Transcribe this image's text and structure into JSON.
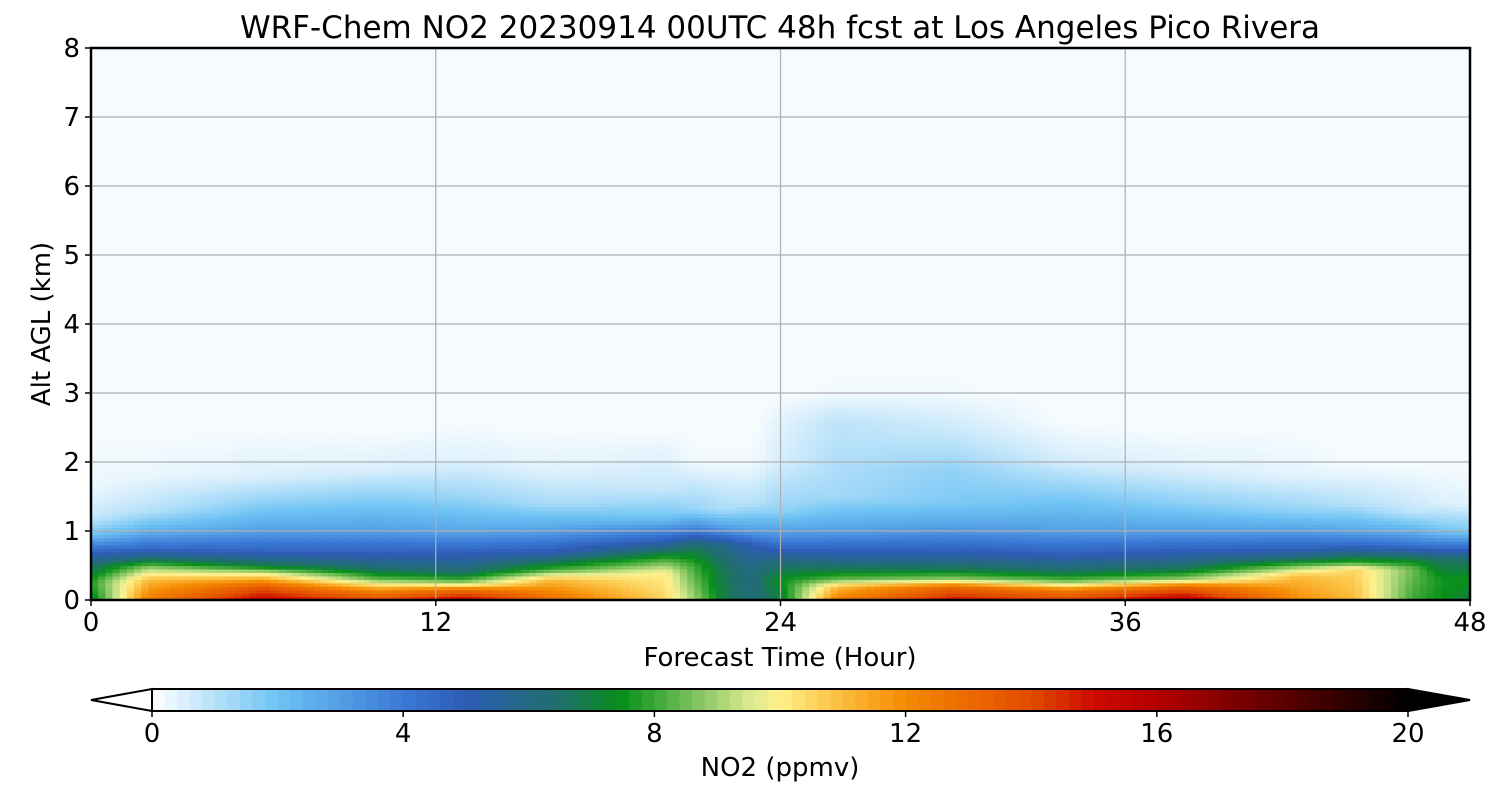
{
  "chart_data": {
    "type": "heatmap",
    "title": "WRF-Chem NO2  20230914 00UTC 48h fcst at Los Angeles Pico Rivera",
    "xlabel": "Forecast Time (Hour)",
    "ylabel": "Alt AGL (km)",
    "xlim": [
      0,
      48
    ],
    "ylim": [
      0,
      8
    ],
    "x_ticks": [
      0,
      12,
      24,
      36,
      48
    ],
    "y_ticks": [
      0,
      1,
      2,
      3,
      4,
      5,
      6,
      7,
      8
    ],
    "grid": true,
    "colorbar": {
      "label": "NO2  (ppmv)",
      "range": [
        0,
        20
      ],
      "ticks": [
        0,
        4,
        8,
        12,
        16,
        20
      ],
      "extend": "both",
      "orientation": "horizontal",
      "stops": [
        {
          "v": 0,
          "c": "#ffffff"
        },
        {
          "v": 2,
          "c": "#6ec3f4"
        },
        {
          "v": 4,
          "c": "#3a78d6"
        },
        {
          "v": 5,
          "c": "#2d5cb5"
        },
        {
          "v": 6.5,
          "c": "#1f6f6a"
        },
        {
          "v": 7.5,
          "c": "#08901a"
        },
        {
          "v": 9.5,
          "c": "#d8e98f"
        },
        {
          "v": 10,
          "c": "#fff08a"
        },
        {
          "v": 11,
          "c": "#fbbc3c"
        },
        {
          "v": 12,
          "c": "#f58a00"
        },
        {
          "v": 14,
          "c": "#e24b00"
        },
        {
          "v": 15,
          "c": "#cc0a00"
        },
        {
          "v": 16,
          "c": "#b30000"
        },
        {
          "v": 18,
          "c": "#5c0000"
        },
        {
          "v": 20,
          "c": "#000000"
        }
      ]
    },
    "profile_hours": [
      0,
      2,
      6,
      10,
      13,
      16,
      20,
      21,
      22,
      23,
      24,
      26,
      30,
      34,
      38,
      42,
      44,
      46,
      47,
      48
    ],
    "profiles_note": "",
    "profiles": [
      [
        [
          0,
          7.0
        ],
        [
          0.25,
          7.8
        ],
        [
          0.5,
          6.5
        ],
        [
          0.75,
          4.2
        ],
        [
          0.95,
          2.0
        ],
        [
          1.2,
          0.8
        ],
        [
          1.6,
          0.3
        ],
        [
          2.5,
          0.1
        ]
      ],
      [
        [
          0,
          12.5
        ],
        [
          0.3,
          11.0
        ],
        [
          0.5,
          8.5
        ],
        [
          0.6,
          6.5
        ],
        [
          0.75,
          4.5
        ],
        [
          1.0,
          2.5
        ],
        [
          1.3,
          1.0
        ],
        [
          1.8,
          0.3
        ],
        [
          2.5,
          0.1
        ]
      ],
      [
        [
          0,
          15.5
        ],
        [
          0.2,
          13.5
        ],
        [
          0.4,
          9.5
        ],
        [
          0.5,
          7.0
        ],
        [
          0.7,
          4.8
        ],
        [
          1.0,
          3.0
        ],
        [
          1.4,
          1.6
        ],
        [
          1.8,
          0.5
        ],
        [
          2.5,
          0.1
        ]
      ],
      [
        [
          0,
          14.0
        ],
        [
          0.15,
          12.0
        ],
        [
          0.3,
          8.5
        ],
        [
          0.45,
          6.5
        ],
        [
          0.7,
          4.8
        ],
        [
          1.0,
          3.0
        ],
        [
          1.5,
          1.6
        ],
        [
          1.9,
          0.5
        ],
        [
          2.5,
          0.1
        ]
      ],
      [
        [
          0,
          15.5
        ],
        [
          0.15,
          13.0
        ],
        [
          0.25,
          9.0
        ],
        [
          0.4,
          6.5
        ],
        [
          0.7,
          4.8
        ],
        [
          1.0,
          2.8
        ],
        [
          1.5,
          1.4
        ],
        [
          2.0,
          0.5
        ],
        [
          2.6,
          0.1
        ]
      ],
      [
        [
          0,
          13.0
        ],
        [
          0.3,
          11.0
        ],
        [
          0.45,
          8.0
        ],
        [
          0.55,
          6.8
        ],
        [
          0.7,
          5.0
        ],
        [
          1.0,
          3.0
        ],
        [
          1.4,
          1.2
        ],
        [
          1.9,
          0.4
        ],
        [
          2.5,
          0.1
        ]
      ],
      [
        [
          0,
          10.5
        ],
        [
          0.4,
          10.0
        ],
        [
          0.6,
          8.0
        ],
        [
          0.75,
          6.2
        ],
        [
          0.9,
          4.5
        ],
        [
          1.2,
          2.0
        ],
        [
          1.6,
          0.8
        ],
        [
          2.5,
          0.1
        ]
      ],
      [
        [
          0,
          9.0
        ],
        [
          0.5,
          8.0
        ],
        [
          0.8,
          6.5
        ],
        [
          1.0,
          4.0
        ],
        [
          1.3,
          1.5
        ],
        [
          2.0,
          0.2
        ]
      ],
      [
        [
          0,
          7.0
        ],
        [
          0.4,
          6.8
        ],
        [
          0.8,
          6.0
        ],
        [
          1.0,
          3.5
        ],
        [
          1.3,
          1.2
        ],
        [
          2.0,
          0.2
        ]
      ],
      [
        [
          0,
          6.2
        ],
        [
          0.5,
          6.0
        ],
        [
          0.8,
          5.0
        ],
        [
          1.0,
          3.0
        ],
        [
          1.4,
          1.0
        ],
        [
          2.0,
          0.2
        ]
      ],
      [
        [
          0,
          7.0
        ],
        [
          0.3,
          7.5
        ],
        [
          0.6,
          6.0
        ],
        [
          0.9,
          3.5
        ],
        [
          1.3,
          1.5
        ],
        [
          2.0,
          0.6
        ],
        [
          2.6,
          0.4
        ],
        [
          3.0,
          0.1
        ]
      ],
      [
        [
          0,
          12.5
        ],
        [
          0.2,
          11.0
        ],
        [
          0.3,
          8.5
        ],
        [
          0.45,
          6.8
        ],
        [
          0.7,
          5.0
        ],
        [
          1.0,
          3.0
        ],
        [
          1.5,
          1.3
        ],
        [
          2.3,
          1.0
        ],
        [
          2.6,
          0.9
        ],
        [
          3.0,
          0.2
        ]
      ],
      [
        [
          0,
          15.0
        ],
        [
          0.2,
          13.0
        ],
        [
          0.3,
          9.0
        ],
        [
          0.45,
          6.8
        ],
        [
          0.7,
          5.0
        ],
        [
          1.0,
          3.2
        ],
        [
          1.4,
          1.8
        ],
        [
          1.9,
          1.5
        ],
        [
          2.4,
          0.8
        ],
        [
          3.0,
          0.2
        ]
      ],
      [
        [
          0,
          14.0
        ],
        [
          0.15,
          12.5
        ],
        [
          0.25,
          9.0
        ],
        [
          0.4,
          6.8
        ],
        [
          0.65,
          5.0
        ],
        [
          1.0,
          3.0
        ],
        [
          1.5,
          1.8
        ],
        [
          2.0,
          0.6
        ],
        [
          2.6,
          0.1
        ]
      ],
      [
        [
          0,
          16.0
        ],
        [
          0.2,
          13.0
        ],
        [
          0.3,
          9.0
        ],
        [
          0.45,
          6.8
        ],
        [
          0.7,
          5.0
        ],
        [
          1.0,
          3.0
        ],
        [
          1.4,
          1.6
        ],
        [
          1.9,
          0.5
        ],
        [
          2.5,
          0.1
        ]
      ],
      [
        [
          0,
          12.0
        ],
        [
          0.35,
          11.0
        ],
        [
          0.5,
          8.5
        ],
        [
          0.6,
          6.5
        ],
        [
          0.75,
          4.8
        ],
        [
          1.0,
          3.0
        ],
        [
          1.3,
          1.5
        ],
        [
          1.8,
          0.4
        ],
        [
          2.5,
          0.1
        ]
      ],
      [
        [
          0,
          11.0
        ],
        [
          0.45,
          10.5
        ],
        [
          0.55,
          8.0
        ],
        [
          0.65,
          6.5
        ],
        [
          0.8,
          4.5
        ],
        [
          1.0,
          2.8
        ],
        [
          1.4,
          1.0
        ],
        [
          2.0,
          0.1
        ]
      ],
      [
        [
          0,
          8.0
        ],
        [
          0.45,
          8.5
        ],
        [
          0.6,
          7.0
        ],
        [
          0.8,
          4.2
        ],
        [
          1.0,
          2.5
        ],
        [
          1.3,
          0.8
        ],
        [
          2.0,
          0.1
        ]
      ],
      [
        [
          0,
          7.5
        ],
        [
          0.3,
          7.6
        ],
        [
          0.6,
          6.5
        ],
        [
          0.8,
          4.0
        ],
        [
          1.0,
          2.0
        ],
        [
          1.4,
          0.5
        ],
        [
          2.0,
          0.1
        ]
      ],
      [
        [
          0,
          7.0
        ],
        [
          0.3,
          7.5
        ],
        [
          0.6,
          6.5
        ],
        [
          0.8,
          4.0
        ],
        [
          1.0,
          1.8
        ],
        [
          1.4,
          0.4
        ],
        [
          2.0,
          0.1
        ]
      ]
    ]
  }
}
